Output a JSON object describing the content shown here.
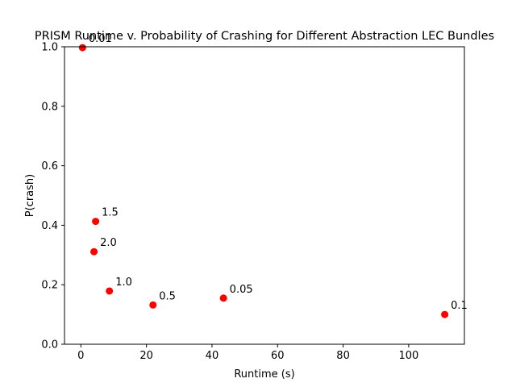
{
  "chart_data": {
    "type": "scatter",
    "title": "PRISM Runtime v. Probability of Crashing for Different Abstraction LEC Bundles",
    "xlabel": "Runtime (s)",
    "ylabel": "P(crash)",
    "xlim": [
      -5,
      117
    ],
    "ylim": [
      0.0,
      1.0
    ],
    "xticks": [
      0,
      20,
      40,
      60,
      80,
      100
    ],
    "xtick_labels": [
      "0",
      "20",
      "40",
      "60",
      "80",
      "100"
    ],
    "yticks": [
      0.0,
      0.2,
      0.4,
      0.6,
      0.8,
      1.0
    ],
    "ytick_labels": [
      "0.0",
      "0.2",
      "0.4",
      "0.6",
      "0.8",
      "1.0"
    ],
    "grid": false,
    "marker_color": "#ff0000",
    "points": [
      {
        "x": 0.5,
        "y": 0.997,
        "label": "0.01"
      },
      {
        "x": 4.5,
        "y": 0.413,
        "label": "1.5"
      },
      {
        "x": 4.0,
        "y": 0.311,
        "label": "2.0"
      },
      {
        "x": 8.7,
        "y": 0.179,
        "label": "1.0"
      },
      {
        "x": 22.0,
        "y": 0.132,
        "label": "0.5"
      },
      {
        "x": 43.5,
        "y": 0.155,
        "label": "0.05"
      },
      {
        "x": 111.0,
        "y": 0.1,
        "label": "0.1"
      }
    ]
  }
}
